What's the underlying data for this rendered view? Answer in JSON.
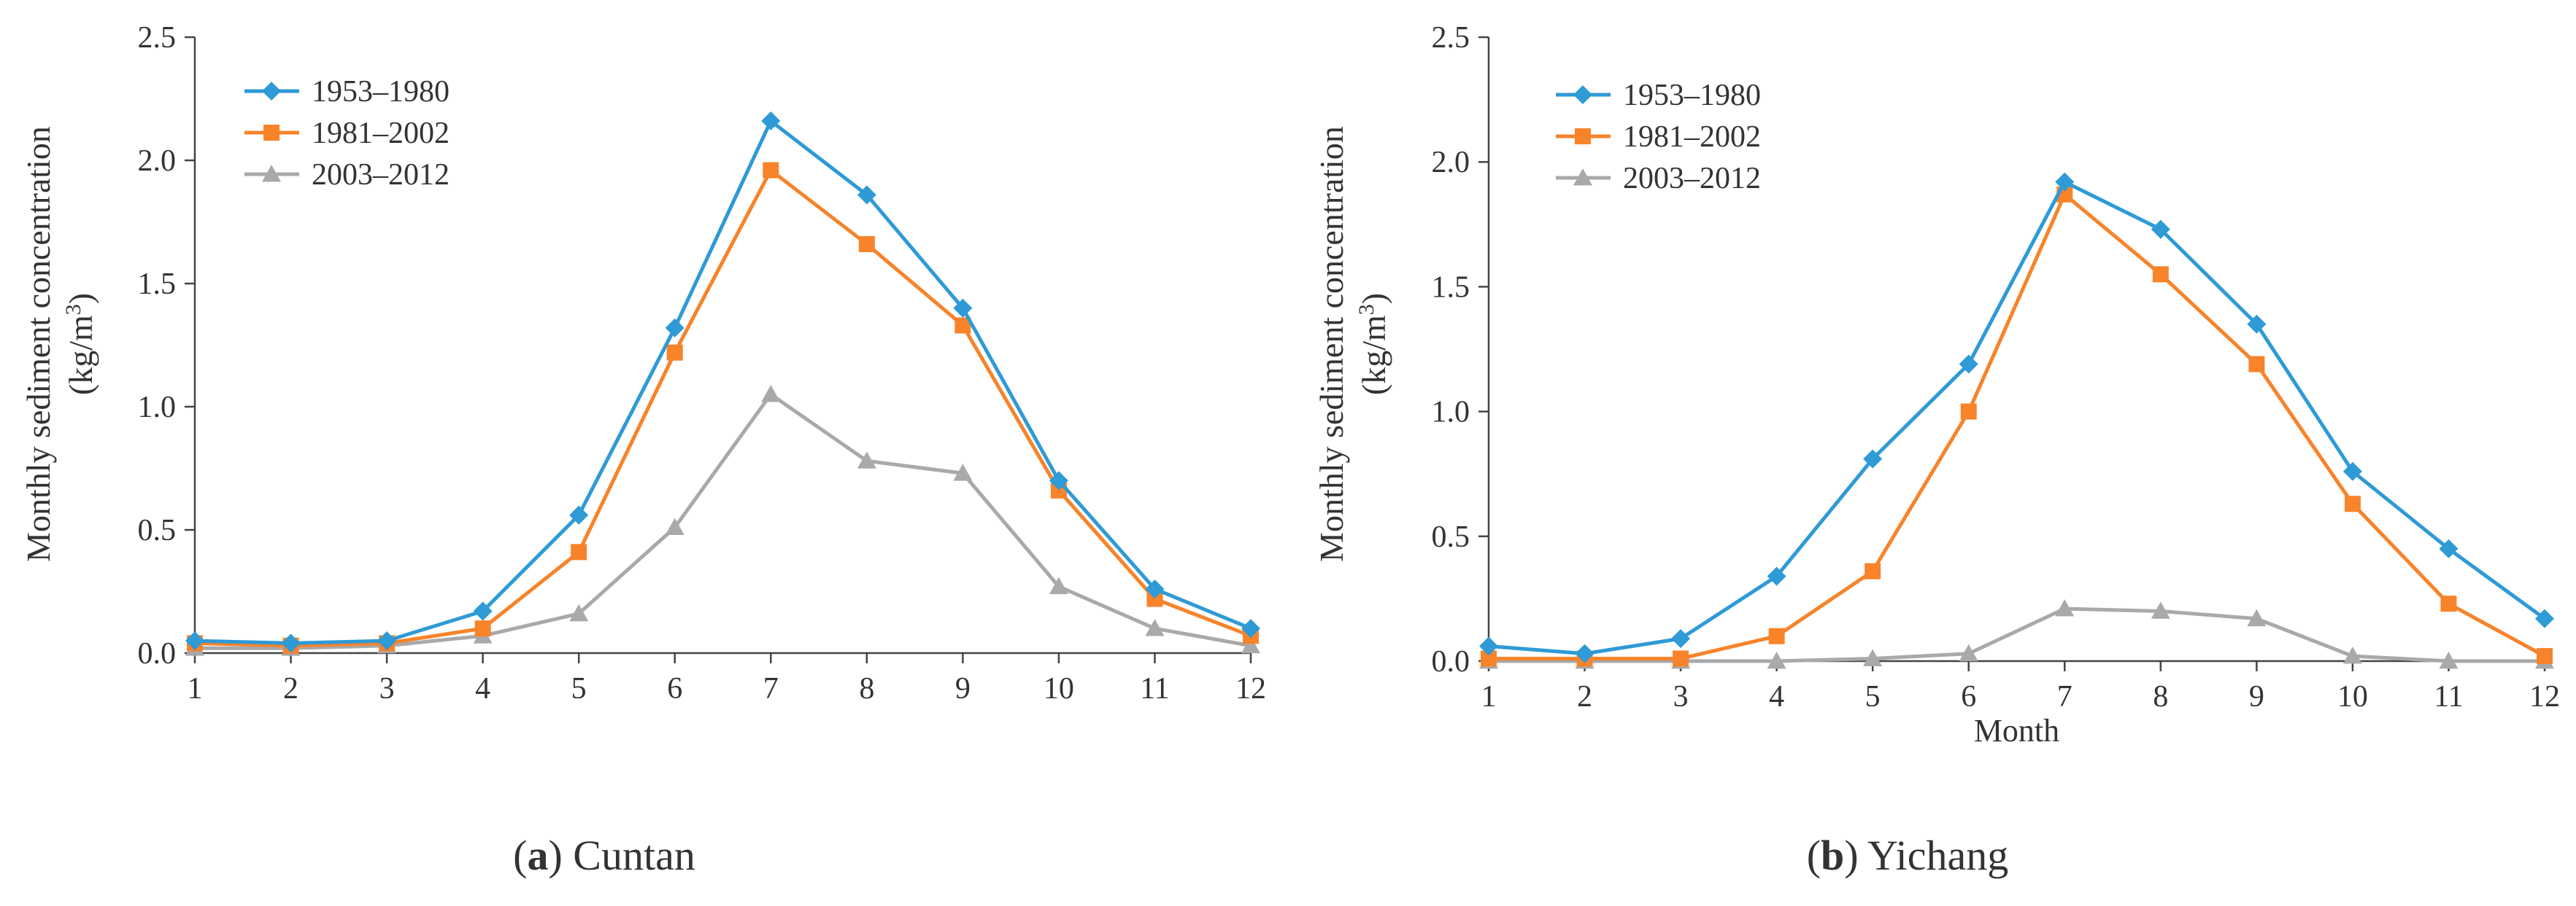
{
  "colors": {
    "series_1953_1980": "#2E9AD6",
    "series_1981_2002": "#F7832A",
    "series_2003_2012": "#A9A9A9",
    "axis": "#444444",
    "text": "#333333"
  },
  "chart_data": [
    {
      "type": "line",
      "panel_letter": "a",
      "caption": " Cuntan",
      "title": "",
      "xlabel": "",
      "ylabel_line1": "Monthly sediment concentration",
      "ylabel_line2_prefix": "(kg/m",
      "ylabel_line2_sup": "3",
      "ylabel_line2_suffix": ")",
      "x": [
        1,
        2,
        3,
        4,
        5,
        6,
        7,
        8,
        9,
        10,
        11,
        12
      ],
      "xlim": [
        1,
        12
      ],
      "ylim": [
        0,
        2.5
      ],
      "yticks": [
        "0.0",
        "0.5",
        "1.0",
        "1.5",
        "2.0",
        "2.5"
      ],
      "legend_position": "top-left",
      "series": [
        {
          "name": "1953–1980",
          "marker": "diamond",
          "color": "#2E9AD6",
          "values": [
            0.05,
            0.04,
            0.05,
            0.17,
            0.56,
            1.32,
            2.16,
            1.86,
            1.4,
            0.7,
            0.26,
            0.1
          ]
        },
        {
          "name": "1981–2002",
          "marker": "square",
          "color": "#F7832A",
          "values": [
            0.04,
            0.03,
            0.04,
            0.1,
            0.41,
            1.22,
            1.96,
            1.66,
            1.33,
            0.66,
            0.22,
            0.07
          ]
        },
        {
          "name": "2003–2012",
          "marker": "triangle",
          "color": "#A9A9A9",
          "values": [
            0.02,
            0.02,
            0.03,
            0.07,
            0.16,
            0.51,
            1.05,
            0.78,
            0.73,
            0.27,
            0.1,
            0.03
          ]
        }
      ]
    },
    {
      "type": "line",
      "panel_letter": "b",
      "caption": " Yichang",
      "title": "",
      "xlabel": "Month",
      "ylabel_line1": "Monthly sediment concentration",
      "ylabel_line2_prefix": "(kg/m",
      "ylabel_line2_sup": "3",
      "ylabel_line2_suffix": ")",
      "x": [
        1,
        2,
        3,
        4,
        5,
        6,
        7,
        8,
        9,
        10,
        11,
        12
      ],
      "xlim": [
        1,
        12
      ],
      "ylim": [
        0,
        2.5
      ],
      "yticks": [
        "0.0",
        "0.5",
        "1.0",
        "1.5",
        "2.0",
        "2.5"
      ],
      "legend_position": "top-left",
      "series": [
        {
          "name": "1953–1980",
          "marker": "diamond",
          "color": "#2E9AD6",
          "values": [
            0.06,
            0.03,
            0.09,
            0.34,
            0.81,
            1.19,
            1.92,
            1.73,
            1.35,
            0.76,
            0.45,
            0.17
          ]
        },
        {
          "name": "1981–2002",
          "marker": "square",
          "color": "#F7832A",
          "values": [
            0.01,
            0.01,
            0.01,
            0.1,
            0.36,
            1.0,
            1.87,
            1.55,
            1.19,
            0.63,
            0.23,
            0.02
          ]
        },
        {
          "name": "2003–2012",
          "marker": "triangle",
          "color": "#A9A9A9",
          "values": [
            0.0,
            0.0,
            0.0,
            0.0,
            0.01,
            0.03,
            0.21,
            0.2,
            0.17,
            0.02,
            0.0,
            0.0
          ]
        }
      ]
    }
  ]
}
